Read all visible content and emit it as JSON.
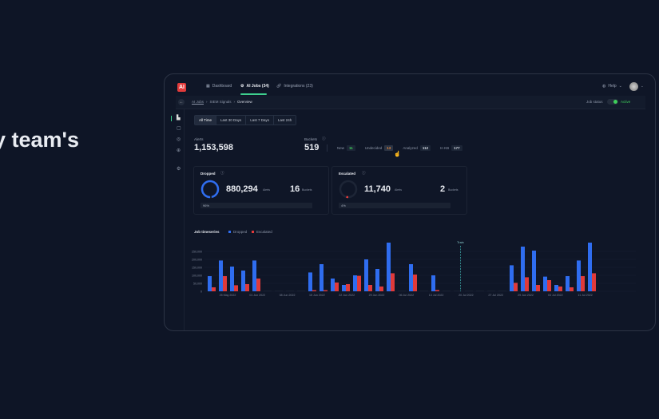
{
  "hero_text": "y team's",
  "app": {
    "logo": "AI",
    "nav": [
      {
        "label": "Dashboard",
        "icon": "dashboard-icon"
      },
      {
        "label": "AI Jobs (34)",
        "icon": "gear-icon"
      },
      {
        "label": "Integrations (23)",
        "icon": "link-icon"
      }
    ],
    "help": "Help",
    "avatar": "user-avatar"
  },
  "breadcrumb": [
    "AI Jobs",
    "SIEM Signals",
    "Overview"
  ],
  "job_status": {
    "label": "Job status",
    "value": "Active",
    "on": true,
    "color": "#3ecf5a"
  },
  "time_tabs": [
    "All Time",
    "Last 30 Days",
    "Last 7 Days",
    "Last 24h"
  ],
  "stats": {
    "alerts_label": "Alerts",
    "alerts": "1,153,598",
    "buckets_label": "Buckets",
    "buckets": "519",
    "chips": [
      {
        "label": "New",
        "value": "11",
        "color": "#3ecf5a"
      },
      {
        "label": "Undecided",
        "value": "13",
        "color": "#e0853b"
      },
      {
        "label": "Analyzed",
        "value": "112"
      },
      {
        "label": "In KB",
        "value": "177"
      }
    ]
  },
  "cards": [
    {
      "title": "Dropped",
      "alerts": "880,294",
      "alerts_unit": "Alerts",
      "buckets": "16",
      "buckets_unit": "Buckets",
      "percent_label": "96%",
      "percent": 96,
      "color": "#2f6df0"
    },
    {
      "title": "Escalated",
      "alerts": "11,740",
      "alerts_unit": "Alerts",
      "buckets": "2",
      "buckets_unit": "Buckets",
      "percent_label": "4%",
      "percent": 4,
      "color": "#e03a3a"
    }
  ],
  "chart_data": {
    "type": "bar",
    "title": "Job timeseries",
    "series": [
      {
        "name": "Dropped",
        "color": "#2f6df0",
        "values": [
          95000,
          193000,
          155000,
          130000,
          193000,
          0,
          0,
          0,
          0,
          118000,
          170000,
          80000,
          40000,
          100000,
          200000,
          140000,
          305000,
          0,
          170000,
          0,
          100000,
          0,
          0,
          0,
          0,
          0,
          0,
          163000,
          280000,
          255000,
          92000,
          40000,
          95000,
          193000,
          305000
        ]
      },
      {
        "name": "Escalated",
        "color": "#e03a3a",
        "values": [
          25000,
          95000,
          38000,
          45000,
          80000,
          0,
          0,
          0,
          0,
          7000,
          7000,
          55000,
          45000,
          97000,
          40000,
          30000,
          113000,
          0,
          105000,
          0,
          8000,
          0,
          0,
          0,
          0,
          0,
          0,
          53000,
          88000,
          40000,
          70000,
          30000,
          25000,
          95000,
          113000
        ]
      }
    ],
    "yticks": [
      "0",
      "50,000",
      "100,000",
      "150,000",
      "200,000",
      "250,000"
    ],
    "ylim": [
      0,
      300000
    ],
    "xticks": [
      "25 May 2022",
      "01 Jun 2022",
      "08 Jun 2022",
      "15 Jun 2022",
      "22 Jun 2022",
      "29 Jun 2022",
      "06 Jul 2022",
      "13 Jul 2022",
      "20 Jul 2022",
      "27 Jul 2022",
      "29 Jun 2022",
      "03 Jul 2022",
      "11 Jul 2022"
    ],
    "annotation": {
      "label": "Train",
      "after_index": 22
    },
    "legend": "top-left",
    "grid": true
  }
}
